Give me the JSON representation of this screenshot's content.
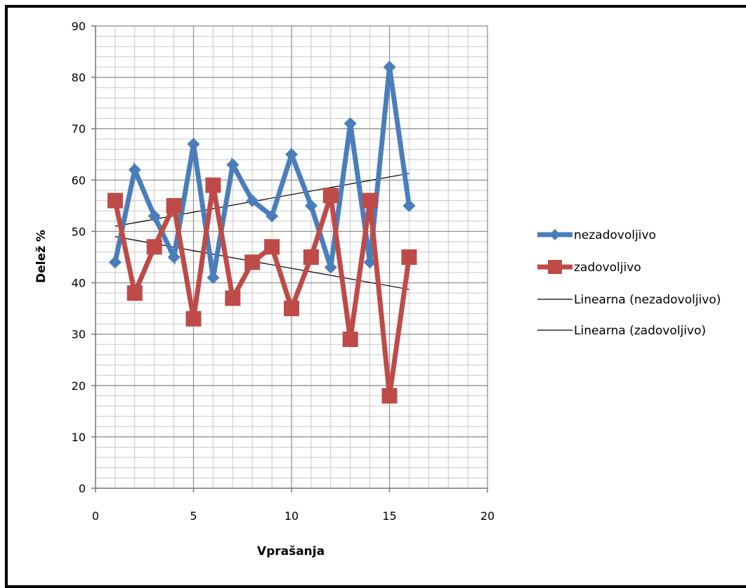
{
  "chart_data": {
    "type": "line",
    "xlabel": "Vprašanja",
    "ylabel": "Delež %",
    "xlim": [
      0,
      20
    ],
    "ylim": [
      0,
      90
    ],
    "x_ticks": [
      0,
      5,
      10,
      15,
      20
    ],
    "y_ticks": [
      0,
      10,
      20,
      30,
      40,
      50,
      60,
      70,
      80,
      90
    ],
    "grid": true,
    "legend_position": "right",
    "x": [
      1,
      2,
      3,
      4,
      5,
      6,
      7,
      8,
      9,
      10,
      11,
      12,
      13,
      14,
      15,
      16
    ],
    "series": [
      {
        "name": "nezadovoljivo",
        "color": "#4a7ebb",
        "marker": "diamond",
        "values": [
          44,
          62,
          53,
          45,
          67,
          41,
          63,
          56,
          53,
          65,
          55,
          43,
          71,
          44,
          82,
          55
        ]
      },
      {
        "name": "zadovoljivo",
        "color": "#be4b48",
        "marker": "square",
        "values": [
          56,
          38,
          47,
          55,
          33,
          59,
          37,
          44,
          47,
          35,
          45,
          57,
          29,
          56,
          18,
          45
        ]
      }
    ],
    "trendlines": [
      {
        "name": "Linearna (nezadovoljivo)",
        "color": "#000000",
        "x": [
          1,
          16
        ],
        "y": [
          51,
          61.3
        ]
      },
      {
        "name": "Linearna (zadovoljivo)",
        "color": "#000000",
        "x": [
          1,
          16
        ],
        "y": [
          49,
          38.7
        ]
      }
    ]
  }
}
